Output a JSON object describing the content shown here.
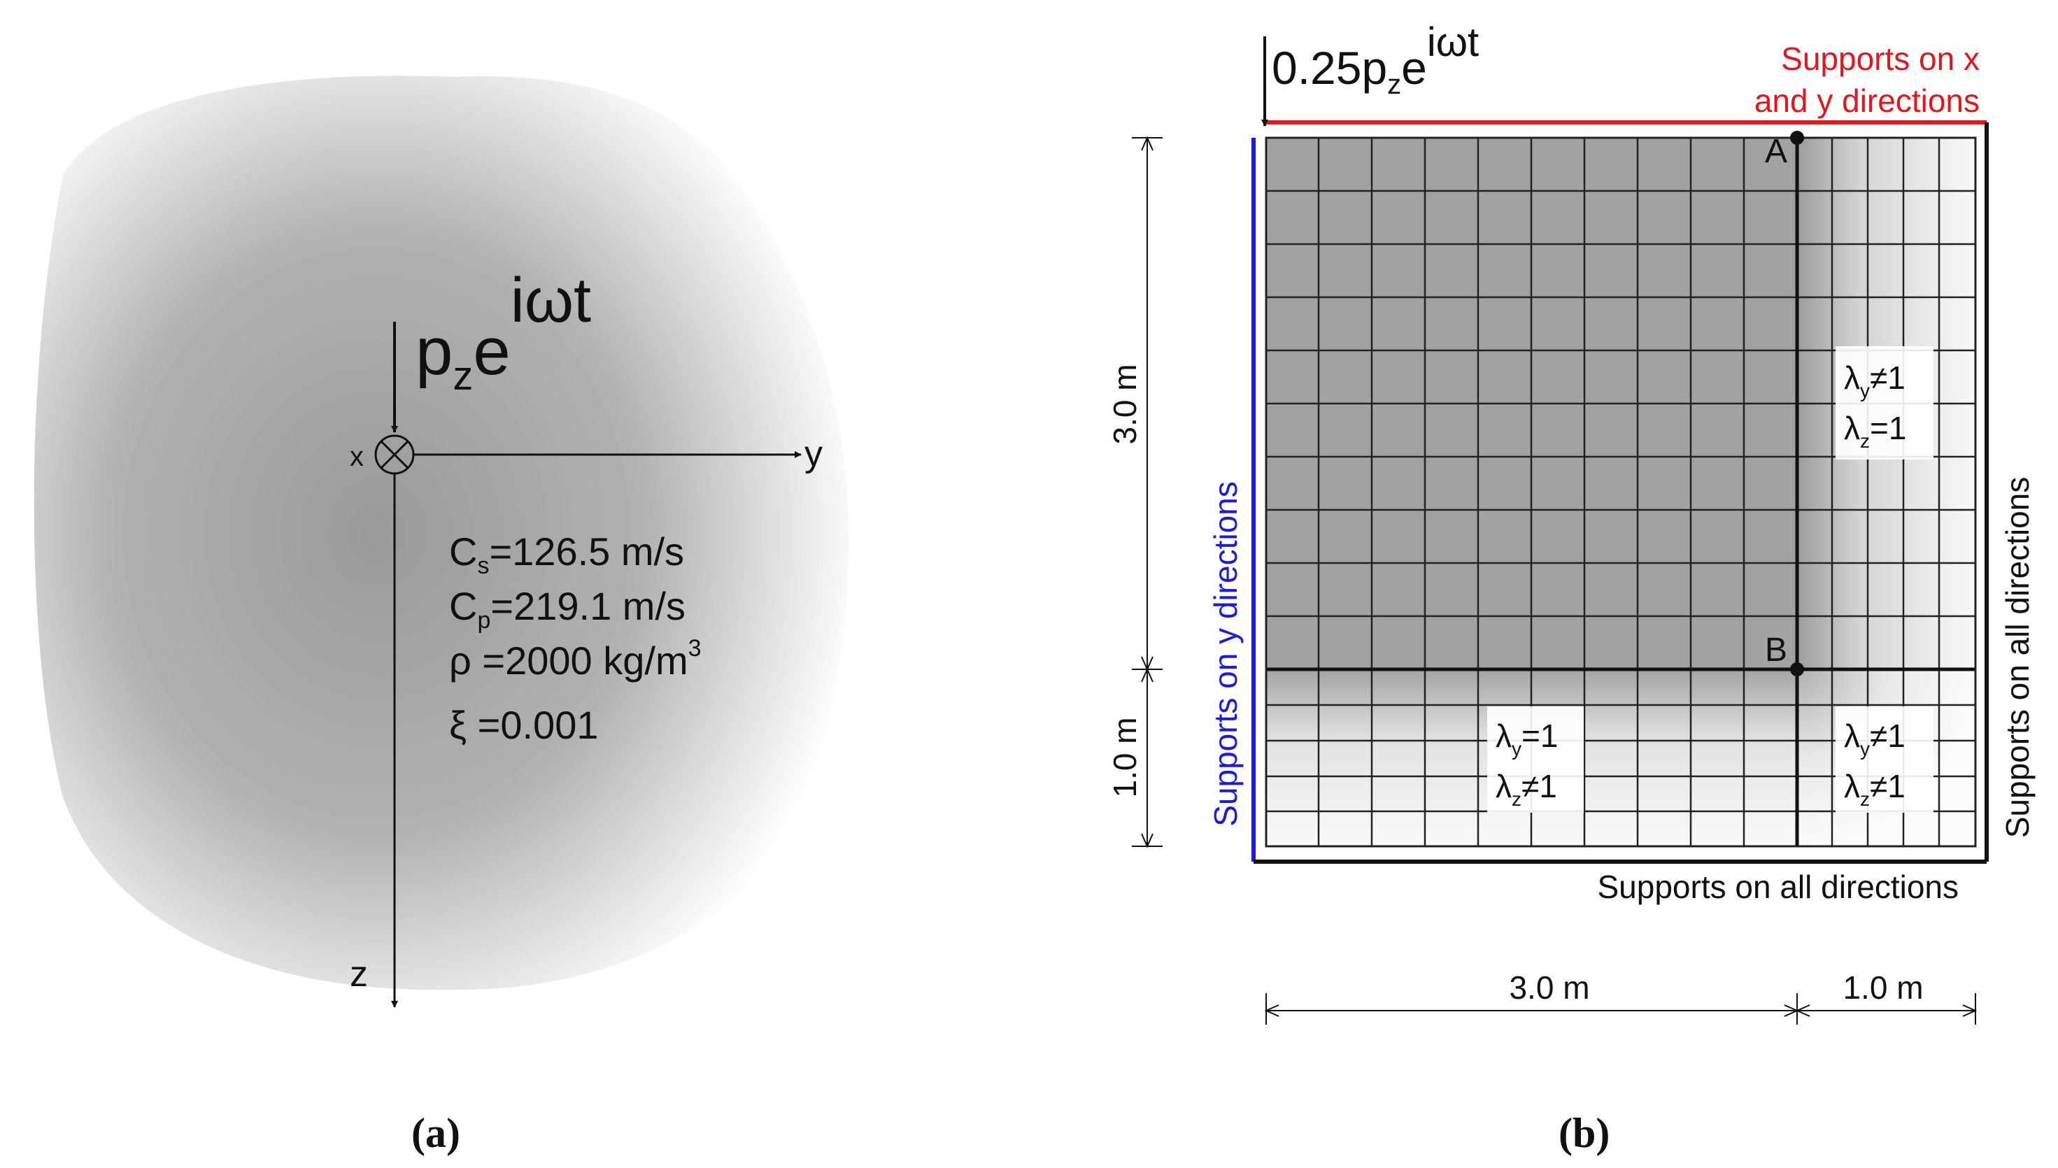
{
  "panel_a": {
    "caption": "(a)",
    "load_base": "p",
    "load_sub": "z",
    "load_exp_e": "e",
    "load_exp_sup": "iωt",
    "axis_x": "x",
    "axis_y": "y",
    "axis_z": "z",
    "props": [
      {
        "sym": "C",
        "sub": "s",
        "rest": "=126.5 m/s"
      },
      {
        "sym": "C",
        "sub": "p",
        "rest": "=219.1 m/s"
      },
      {
        "sym": "ρ",
        "sub": "",
        "rest": " =2000 kg/m",
        "sup": "3"
      },
      {
        "sym": "ξ",
        "sub": "",
        "rest": " =0.001"
      }
    ]
  },
  "panel_b": {
    "caption": "(b)",
    "load_prefix": "0.25p",
    "load_sub": "z",
    "load_e": "e",
    "load_sup": "iωt",
    "support_top_line1": "Supports on x",
    "support_top_line2": "and y directions",
    "support_left": "Supports on y directions",
    "support_right": "Supports on all directions",
    "support_bottom": "Supports on all directions",
    "point_a": "A",
    "point_b": "B",
    "dim_vertical_top": "3.0 m",
    "dim_vertical_bottom": "1.0 m",
    "dim_horizontal_left": "3.0 m",
    "dim_horizontal_right": "1.0 m",
    "region_right": {
      "l1": "y",
      "v1": "≠1",
      "l2": "z",
      "v2": "=1"
    },
    "region_bottom": {
      "l1": "y",
      "v1": "=1",
      "l2": "z",
      "v2": "≠1"
    },
    "region_corner": {
      "l1": "y",
      "v1": "≠1",
      "l2": "z",
      "v2": "≠1"
    },
    "lambda": "λ",
    "colors": {
      "red": "#e8141c",
      "blue": "#1a1ae6"
    }
  }
}
